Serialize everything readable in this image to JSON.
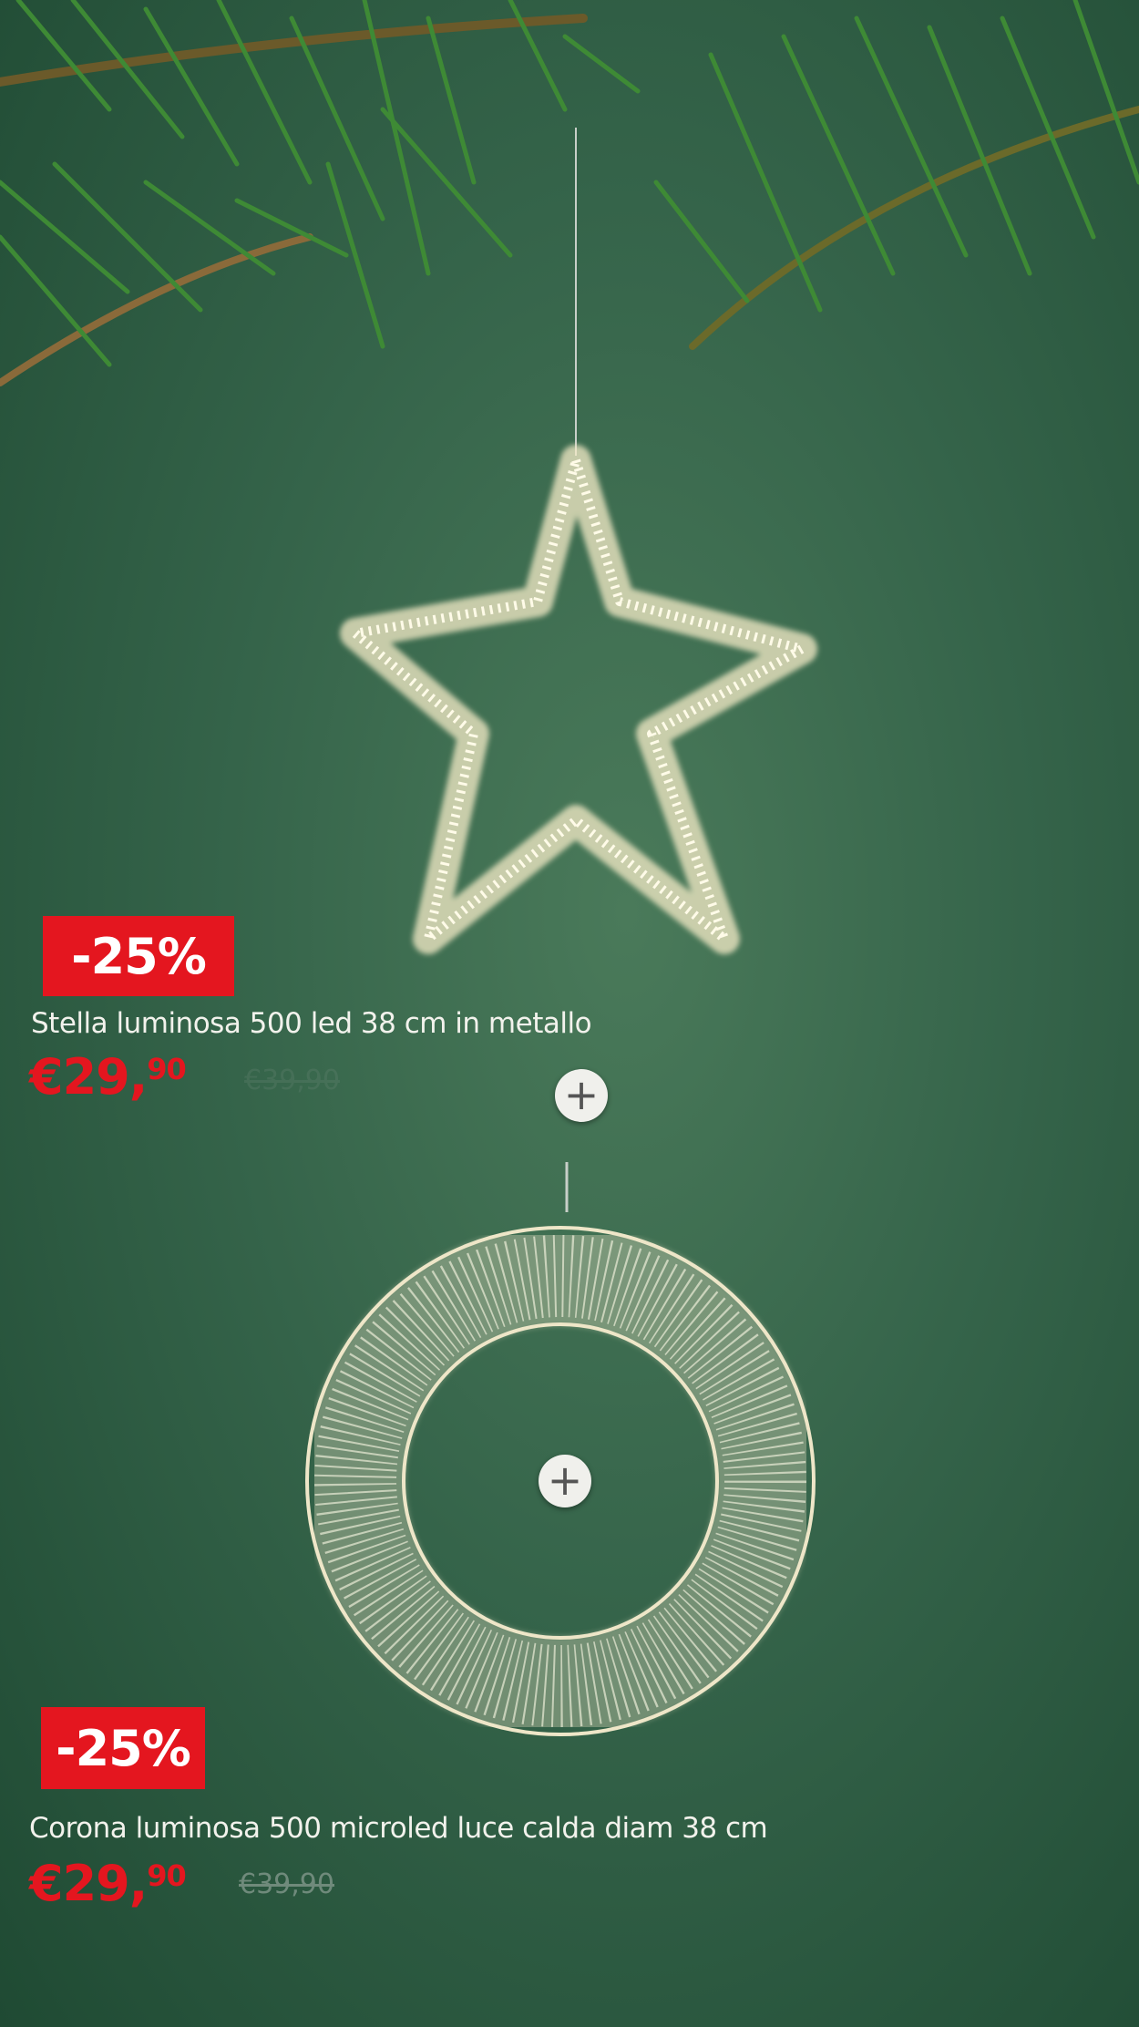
{
  "products": [
    {
      "discount": "-25%",
      "title": "Stella luminosa 500 led 38 cm in metallo",
      "price_main": "€29,",
      "price_cents": "90",
      "old_price": "€39,90",
      "icon": "plus-icon"
    },
    {
      "discount": "-25%",
      "title": "Corona luminosa 500 microled luce calda diam 38 cm",
      "price_main": "€29,",
      "price_cents": "90",
      "old_price": "€39,90",
      "icon": "plus-icon"
    }
  ],
  "colors": {
    "accent": "#e4161f",
    "background": "#35644a"
  }
}
